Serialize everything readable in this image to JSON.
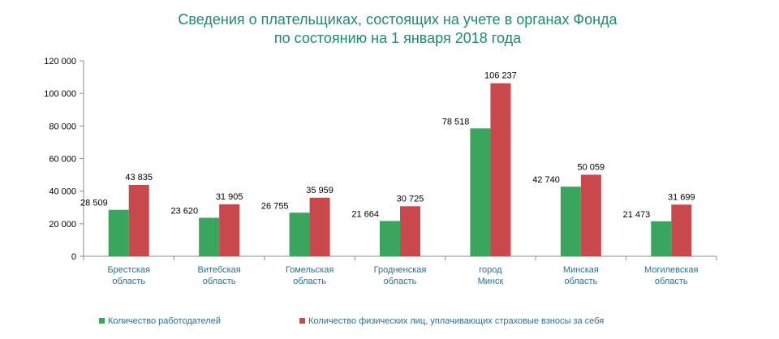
{
  "chart_data": {
    "type": "bar",
    "title": "Сведения о плательщиках,  состоящих на учете в органах Фонда",
    "subtitle": "по состоянию на 1 января 2018 года",
    "categories": [
      [
        "Брестская",
        "область"
      ],
      [
        "Витебская",
        "область"
      ],
      [
        "Гомельская",
        "область"
      ],
      [
        "Гродненская",
        "область"
      ],
      [
        "город",
        "Минск"
      ],
      [
        "Минская",
        "область"
      ],
      [
        "Могилевская",
        "область"
      ]
    ],
    "series": [
      {
        "name": "Количество работодателей",
        "color": "#3aa55d",
        "values": [
          28509,
          23620,
          26755,
          21664,
          78518,
          42740,
          21473
        ],
        "labels": [
          "28 509",
          "23 620",
          "26 755",
          "21 664",
          "78 518",
          "42 740",
          "21 473"
        ]
      },
      {
        "name": "Количество физических лиц, уплачивающих страховые взносы за себя",
        "color": "#c8484c",
        "values": [
          43835,
          31905,
          35959,
          30725,
          106237,
          50059,
          31699
        ],
        "labels": [
          "43 835",
          "31 905",
          "35 959",
          "30 725",
          "106 237",
          "50 059",
          "31 699"
        ]
      }
    ],
    "ylim": [
      0,
      120000
    ],
    "yticks": [
      0,
      20000,
      40000,
      60000,
      80000,
      100000,
      120000
    ],
    "ytick_labels": [
      "0",
      "20 000",
      "40 000",
      "60 000",
      "80 000",
      "100 000",
      "120 000"
    ],
    "grid": false,
    "legend_position": "bottom",
    "xlabel": "",
    "ylabel": ""
  }
}
